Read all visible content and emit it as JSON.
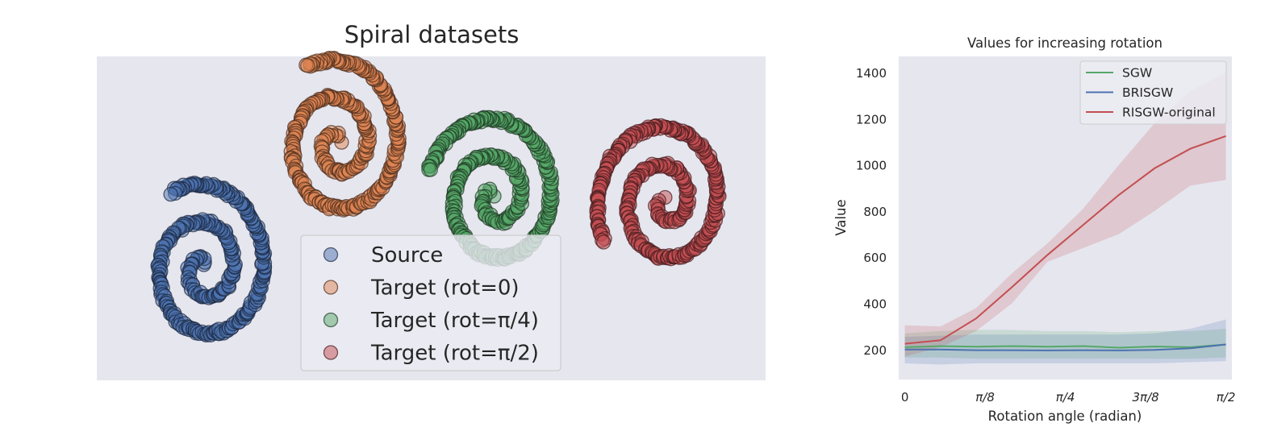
{
  "chart_data": [
    {
      "type": "scatter",
      "title": "Spiral datasets",
      "xlabel": "",
      "ylabel": "",
      "grid": false,
      "axes_visible": false,
      "legend_position": "lower-center",
      "theme": "seaborn-darkgrid",
      "background_color": "#e6e6ef",
      "series": [
        {
          "name": "Source",
          "color": "#4c72b0",
          "center": [
            -2.9,
            -0.45
          ],
          "turns": 2.25,
          "scale": 1.0,
          "start_angle_deg": 0,
          "points": 320
        },
        {
          "name": "Target (rot=0)",
          "color": "#dd8452",
          "center": [
            -0.9,
            1.05
          ],
          "turns": 2.25,
          "scale": 1.0,
          "start_angle_deg": 0,
          "points": 320
        },
        {
          "name": "Target (rot=π/4)",
          "color": "#55a868",
          "center": [
            1.45,
            0.4
          ],
          "turns": 2.25,
          "scale": 1.0,
          "start_angle_deg": 45,
          "points": 320
        },
        {
          "name": "Target (rot=π/2)",
          "color": "#c44e52",
          "center": [
            4.0,
            0.35
          ],
          "turns": 2.25,
          "scale": 1.0,
          "start_angle_deg": 90,
          "points": 320
        }
      ],
      "xlim": [
        -4.5,
        5.5
      ],
      "ylim": [
        -1.8,
        2.1
      ]
    },
    {
      "type": "line",
      "title": "Values for increasing rotation",
      "xlabel": "Rotation angle (radian)",
      "ylabel": "Value",
      "xlim": [
        -0.03,
        1.6
      ],
      "ylim": [
        70,
        1470
      ],
      "grid": false,
      "theme": "seaborn-darkgrid",
      "background_color": "#e6e6ef",
      "legend_position": "top-right",
      "x_ticks": [
        0,
        0.3927,
        0.7854,
        1.1781,
        1.5708
      ],
      "x_tick_labels": [
        "0",
        "π/8",
        "π/4",
        "3π/8",
        "π/2"
      ],
      "y_ticks": [
        200,
        400,
        600,
        800,
        1000,
        1200,
        1400
      ],
      "y_tick_labels": [
        "200",
        "400",
        "600",
        "800",
        "1000",
        "1200",
        "1400"
      ],
      "x": [
        0,
        0.1745,
        0.3491,
        0.5236,
        0.6981,
        0.8727,
        1.0472,
        1.2217,
        1.3963,
        1.5708
      ],
      "series": [
        {
          "name": "SGW",
          "color": "#55a868",
          "values": [
            210,
            215,
            212,
            215,
            212,
            215,
            208,
            213,
            210,
            222
          ],
          "lower": [
            165,
            165,
            160,
            160,
            160,
            160,
            160,
            160,
            160,
            165
          ],
          "upper": [
            270,
            280,
            285,
            285,
            280,
            280,
            275,
            280,
            280,
            290
          ]
        },
        {
          "name": "BRISGW",
          "color": "#4c72b0",
          "values": [
            200,
            200,
            197,
            197,
            196,
            197,
            196,
            198,
            205,
            222
          ],
          "lower": [
            140,
            135,
            140,
            140,
            140,
            140,
            140,
            140,
            145,
            150
          ],
          "upper": [
            255,
            260,
            265,
            265,
            265,
            265,
            265,
            270,
            290,
            330
          ]
        },
        {
          "name": "RISGW-original",
          "color": "#c44e52",
          "values": [
            225,
            240,
            335,
            470,
            610,
            740,
            870,
            985,
            1070,
            1125
          ],
          "lower": [
            170,
            210,
            280,
            400,
            580,
            640,
            700,
            800,
            910,
            935
          ],
          "upper": [
            305,
            300,
            380,
            530,
            660,
            810,
            1000,
            1180,
            1320,
            1400
          ]
        }
      ]
    }
  ]
}
